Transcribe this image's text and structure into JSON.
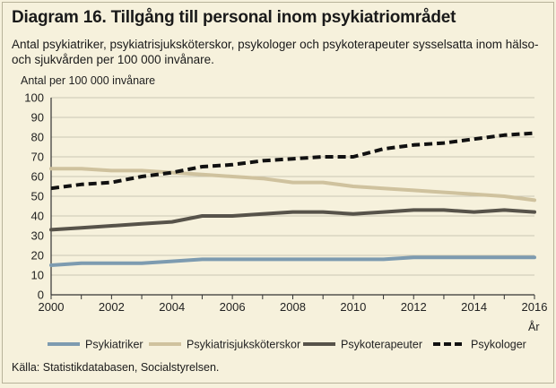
{
  "title": "Diagram 16. Tillgång till personal inom psykiatriområdet",
  "subtitle": "Antal psykiatriker, psykiatrisjuksköterskor, psykologer och psykoterapeuter sysselsatta inom hälso- och sjukvården per 100 000 invånare.",
  "source": "Källa: Statistikdatabasen, Socialstyrelsen.",
  "chart_data": {
    "type": "line",
    "ylabel": "Antal per 100 000 invånare",
    "xlabel": "År",
    "xlim": [
      2000,
      2016
    ],
    "ylim": [
      0,
      100
    ],
    "x_ticks": [
      2000,
      2002,
      2004,
      2006,
      2008,
      2010,
      2012,
      2014,
      2016
    ],
    "y_ticks": [
      0,
      10,
      20,
      30,
      40,
      50,
      60,
      70,
      80,
      90,
      100
    ],
    "grid": "horizontal",
    "legend_position": "bottom",
    "x": [
      2000,
      2001,
      2002,
      2003,
      2004,
      2005,
      2006,
      2007,
      2008,
      2009,
      2010,
      2011,
      2012,
      2013,
      2014,
      2015,
      2016
    ],
    "series": [
      {
        "name": "Psykiatriker",
        "color": "#7d9bb0",
        "style": "solid",
        "values": [
          15,
          16,
          16,
          16,
          17,
          18,
          18,
          18,
          18,
          18,
          18,
          18,
          19,
          19,
          19,
          19,
          19
        ]
      },
      {
        "name": "Psykiatrisjuksköterskor",
        "color": "#cfc29e",
        "style": "solid",
        "values": [
          64,
          64,
          63,
          63,
          62,
          61,
          60,
          59,
          57,
          57,
          55,
          54,
          53,
          52,
          51,
          50,
          48
        ]
      },
      {
        "name": "Psykoterapeuter",
        "color": "#57534a",
        "style": "solid",
        "values": [
          33,
          34,
          35,
          36,
          37,
          40,
          40,
          41,
          42,
          42,
          41,
          42,
          43,
          43,
          42,
          43,
          42
        ]
      },
      {
        "name": "Psykologer",
        "color": "#111111",
        "style": "dashed",
        "values": [
          54,
          56,
          57,
          60,
          62,
          65,
          66,
          68,
          69,
          70,
          70,
          74,
          76,
          77,
          79,
          81,
          82
        ]
      }
    ]
  }
}
